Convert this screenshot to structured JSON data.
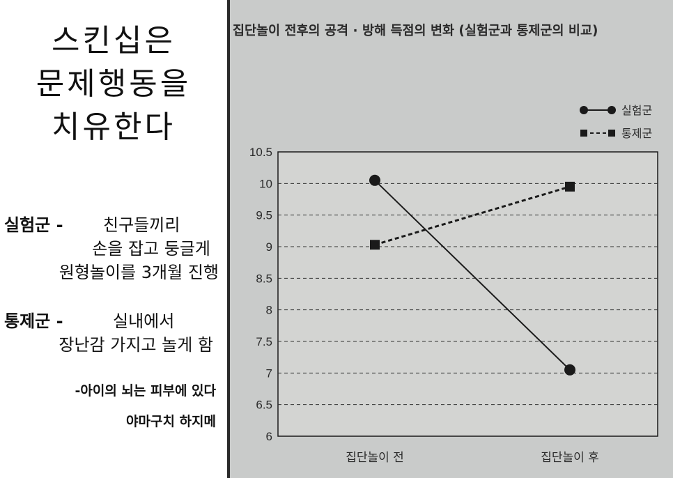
{
  "left": {
    "title_lines": [
      "스킨십은",
      "문제행동을",
      "치유한다"
    ],
    "experimental": {
      "label": "실험군 -",
      "lines": [
        "친구들끼리",
        "손을 잡고 둥글게",
        "원형놀이를 3개월 진행"
      ]
    },
    "control": {
      "label": "통제군 -",
      "lines": [
        "실내에서",
        "장난감 가지고 놀게 함"
      ]
    },
    "quote": {
      "line1": "-아이의 뇌는 피부에 있다",
      "line2": "야마구치 하지메"
    }
  },
  "chart_data": {
    "type": "line",
    "title": "집단놀이 전후의 공격 · 방해 득점의 변화 (실험군과 통제군의 비교)",
    "categories": [
      "집단놀이 전",
      "집단놀이 후"
    ],
    "series": [
      {
        "name": "실험군",
        "values": [
          10.05,
          7.05
        ],
        "style": "solid",
        "marker": "circle"
      },
      {
        "name": "통제군",
        "values": [
          9.03,
          9.95
        ],
        "style": "dashed",
        "marker": "square"
      }
    ],
    "ylim": [
      6,
      10.5
    ],
    "yticks": [
      "6",
      "6.5",
      "7",
      "7.5",
      "8",
      "8.5",
      "9",
      "9.5",
      "10",
      "10.5"
    ],
    "grid": true,
    "legend": "top-right",
    "colors": {
      "line": "#1a1a1a",
      "plot_bg": "#d3d4d2",
      "grid": "#333333"
    }
  }
}
